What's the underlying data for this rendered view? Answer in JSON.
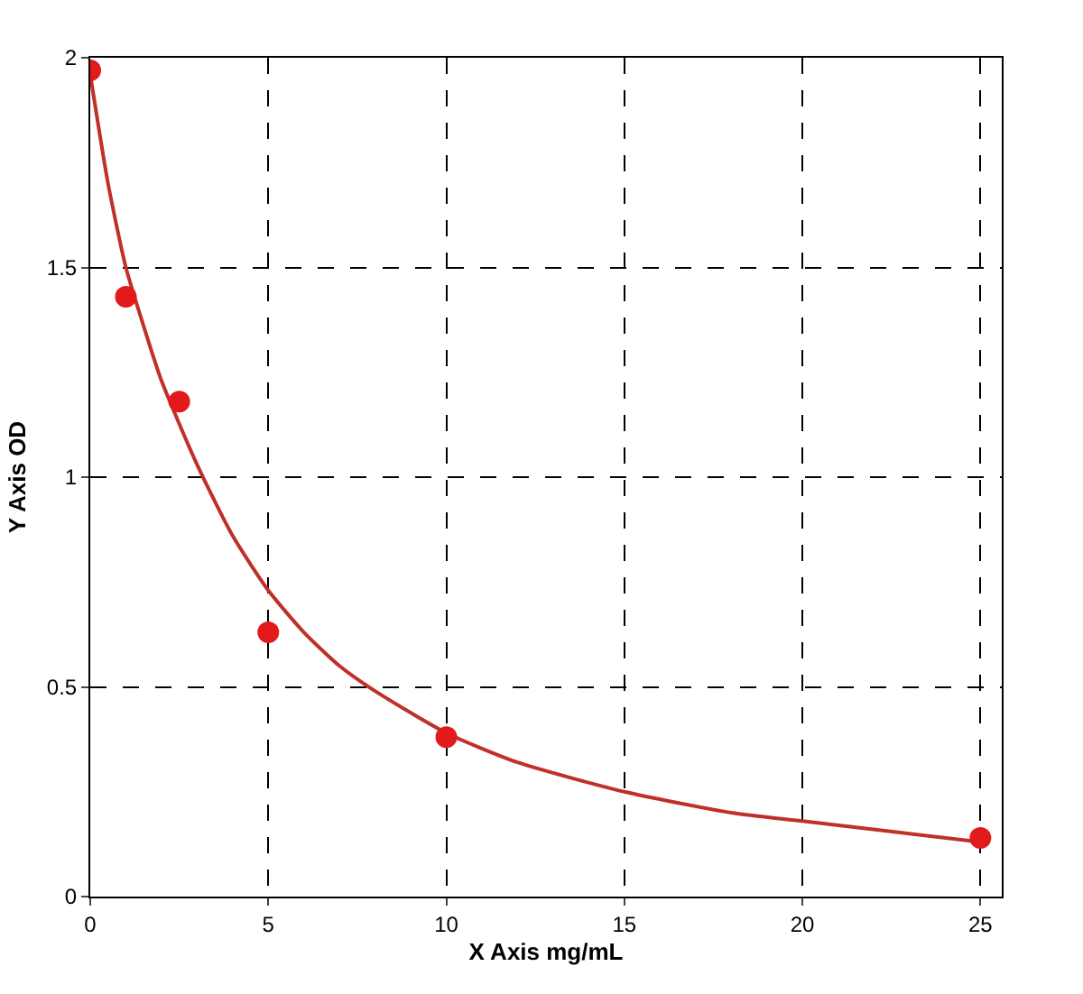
{
  "chart_data": {
    "type": "scatter",
    "xlabel": "X Axis mg/mL",
    "ylabel": "Y Axis OD",
    "xlim": [
      0,
      25.6
    ],
    "xticks": [
      0,
      5,
      10,
      15,
      20,
      25
    ],
    "ylim": [
      0,
      2
    ],
    "yticks": [
      0,
      0.5,
      1,
      1.5,
      2
    ],
    "grid": true,
    "marker": "circle",
    "series": [
      {
        "color": "#e31a1c",
        "x": [
          0,
          1,
          2.5,
          5,
          10,
          25
        ],
        "values": [
          1.97,
          1.43,
          1.18,
          0.63,
          0.38,
          0.14
        ]
      },
      {
        "type": "line",
        "color": "#c0302a",
        "line_style": "solid",
        "marker": "none",
        "x": [
          0,
          0.5,
          1,
          1.5,
          2,
          3,
          4,
          5,
          6,
          7,
          8,
          10,
          12,
          15,
          18,
          20,
          22,
          25
        ],
        "values": [
          1.96,
          1.7,
          1.5,
          1.36,
          1.23,
          1.03,
          0.86,
          0.73,
          0.63,
          0.55,
          0.49,
          0.39,
          0.32,
          0.25,
          0.2,
          0.18,
          0.16,
          0.13
        ]
      }
    ]
  }
}
